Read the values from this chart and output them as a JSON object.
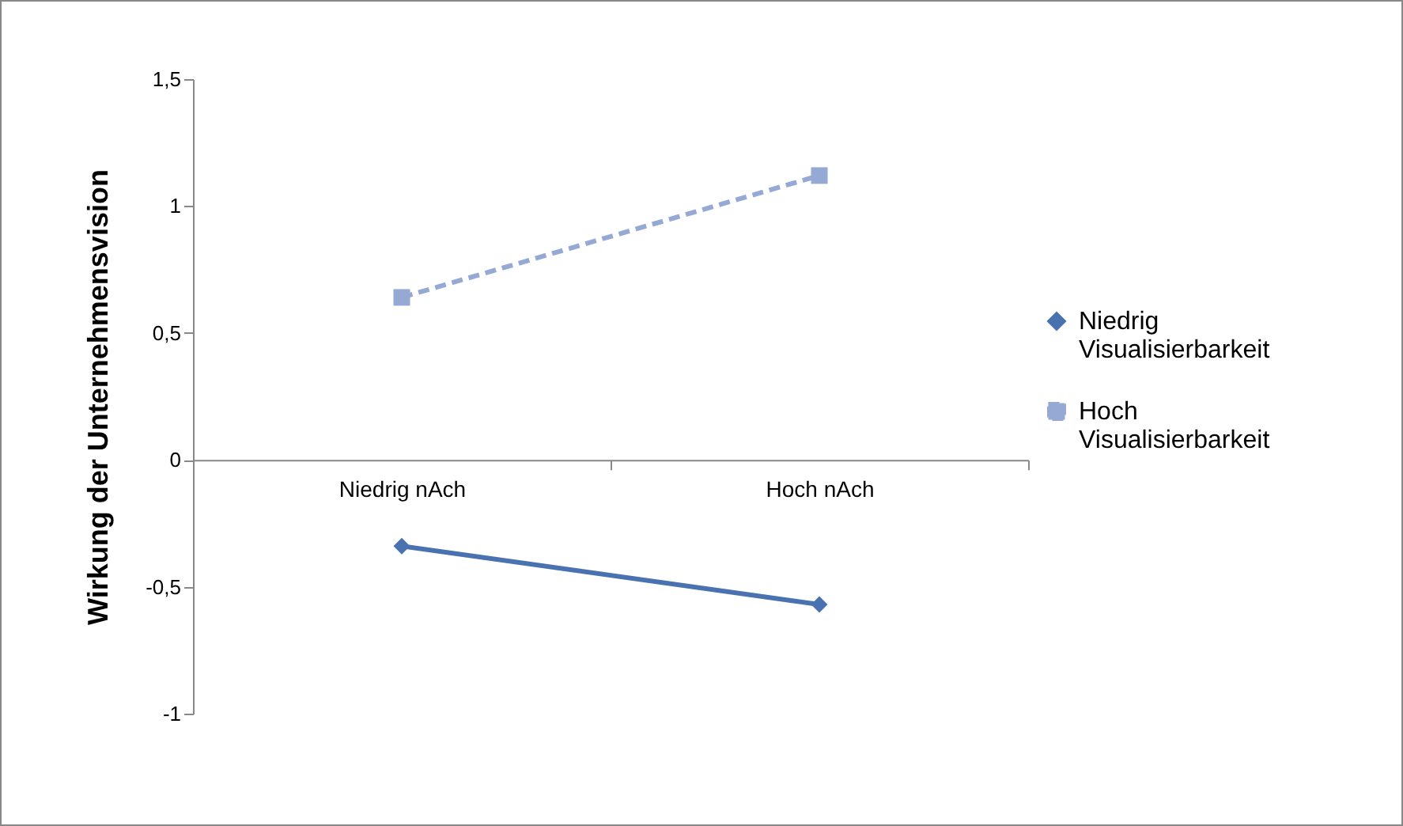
{
  "chart_data": {
    "type": "line",
    "ylabel": "Wirkung der Unternehmensvision",
    "categories": [
      "Niedrig nAch",
      "Hoch nAch"
    ],
    "series": [
      {
        "name": "Niedrig Visualisierbarkeit",
        "color": "#4a72b0",
        "values": [
          -0.34,
          -0.57
        ],
        "marker": "diamond",
        "line_style": "solid"
      },
      {
        "name": "Hoch Visualisierbarkeit",
        "color": "#95a9d4",
        "values": [
          0.64,
          1.12
        ],
        "marker": "square",
        "line_style": "dashed"
      }
    ],
    "ylim": [
      -1,
      1.5
    ],
    "yticks": [
      -1,
      {
        "value": -0.5,
        "label": "-0,5"
      },
      0,
      {
        "value": 0.5,
        "label": "0,5"
      },
      1,
      {
        "value": 1.5,
        "label": "1,5"
      }
    ],
    "grid": false,
    "legend": "right"
  }
}
